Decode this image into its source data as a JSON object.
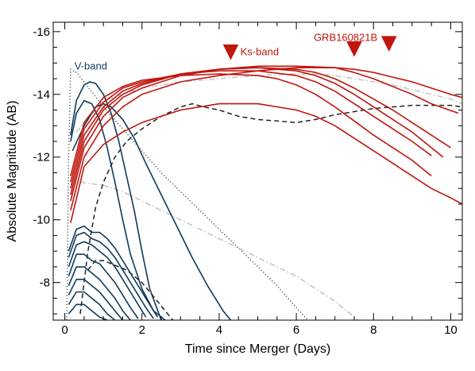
{
  "chart_data": {
    "type": "line",
    "xlabel": "Time since Merger (Days)",
    "ylabel": "Absolute Magnitude (AB)",
    "xlim": [
      -0.3,
      10.3
    ],
    "ylim": [
      -6.8,
      -16.3
    ],
    "y_inverted": true,
    "x_ticks": [
      0,
      2,
      4,
      6,
      8,
      10
    ],
    "y_ticks": [
      -8,
      -10,
      -12,
      -14,
      -16
    ],
    "grid": false,
    "colors": {
      "red": "#c0160e",
      "blue": "#0f3a5c",
      "black": "#222222",
      "gray": "#9a9a9a",
      "lightgray": "#c2c2c2"
    },
    "annotations": [
      {
        "text": "V-band",
        "x": 0.25,
        "y": -14.9,
        "color": "#0f3a5c"
      },
      {
        "text": "Ks-band",
        "x": 4.55,
        "y": -15.35,
        "color": "#c0160e"
      },
      {
        "text": "GRB160821B",
        "x": 6.45,
        "y": -15.8,
        "color": "#c0160e"
      }
    ],
    "markers": [
      {
        "label": "",
        "type": "down-triangle",
        "x": 4.3,
        "y": -15.35
      },
      {
        "label": "",
        "type": "down-triangle",
        "x": 7.5,
        "y": -15.45
      },
      {
        "label": "",
        "type": "down-triangle",
        "x": 8.4,
        "y": -15.62
      }
    ],
    "series": [
      {
        "group": "Ks",
        "style": "solid",
        "color": "#c0160e",
        "x": [
          0.15,
          0.5,
          1,
          1.5,
          2,
          3,
          4,
          5,
          6,
          7,
          7.5,
          8,
          8.5,
          9,
          9.5,
          10,
          10.3
        ],
        "y": [
          -10.3,
          -12.0,
          -13.0,
          -13.6,
          -14.0,
          -14.4,
          -14.6,
          -14.75,
          -14.85,
          -14.85,
          -14.8,
          -14.7,
          -14.55,
          -14.4,
          -14.2,
          -14.0,
          -13.9
        ]
      },
      {
        "group": "Ks",
        "style": "solid",
        "color": "#c0160e",
        "x": [
          0.15,
          0.5,
          1,
          1.5,
          2,
          3,
          4,
          5,
          6,
          7,
          7.5,
          8,
          8.5,
          9,
          9.5,
          10.2
        ],
        "y": [
          -10.6,
          -12.3,
          -13.3,
          -13.9,
          -14.2,
          -14.6,
          -14.8,
          -14.9,
          -14.9,
          -14.85,
          -14.7,
          -14.5,
          -14.25,
          -14.0,
          -13.7,
          -13.4
        ]
      },
      {
        "group": "Ks",
        "style": "solid",
        "color": "#c0160e",
        "x": [
          0.15,
          0.5,
          1,
          1.5,
          2,
          3,
          4,
          5,
          6,
          6.5,
          7,
          7.5,
          8,
          8.5,
          9,
          9.5,
          10
        ],
        "y": [
          -10.8,
          -12.5,
          -13.5,
          -14.0,
          -14.3,
          -14.65,
          -14.8,
          -14.85,
          -14.8,
          -14.7,
          -14.5,
          -14.2,
          -13.85,
          -13.5,
          -13.1,
          -12.7,
          -12.3
        ]
      },
      {
        "group": "Ks",
        "style": "solid",
        "color": "#c0160e",
        "x": [
          0.15,
          0.5,
          1,
          1.5,
          2,
          3,
          4,
          5,
          6,
          6.5,
          7,
          7.5,
          8,
          8.5,
          9,
          9.5,
          9.8
        ],
        "y": [
          -11.0,
          -12.7,
          -13.6,
          -14.1,
          -14.35,
          -14.65,
          -14.8,
          -14.85,
          -14.75,
          -14.6,
          -14.35,
          -14.0,
          -13.6,
          -13.2,
          -12.8,
          -12.3,
          -12.0
        ]
      },
      {
        "group": "Ks",
        "style": "solid",
        "color": "#c0160e",
        "x": [
          0.15,
          0.5,
          1,
          1.5,
          2,
          3,
          4,
          5,
          6,
          6.5,
          7,
          7.5,
          8,
          8.5,
          9,
          9.5
        ],
        "y": [
          -11.2,
          -12.9,
          -13.75,
          -14.2,
          -14.4,
          -14.65,
          -14.75,
          -14.75,
          -14.6,
          -14.4,
          -14.1,
          -13.7,
          -13.3,
          -12.9,
          -12.5,
          -12.05
        ]
      },
      {
        "group": "Ks",
        "style": "solid",
        "color": "#c0160e",
        "x": [
          0.15,
          0.5,
          1,
          1.5,
          2,
          3,
          4,
          5,
          5.5,
          6,
          6.5,
          7,
          7.5,
          8,
          8.5,
          9,
          9.5
        ],
        "y": [
          -11.4,
          -13.1,
          -13.9,
          -14.25,
          -14.45,
          -14.6,
          -14.65,
          -14.6,
          -14.5,
          -14.3,
          -14.0,
          -13.6,
          -13.15,
          -12.7,
          -12.3,
          -11.9,
          -11.4
        ]
      },
      {
        "group": "Ks",
        "style": "solid",
        "color": "#c0160e",
        "x": [
          0.15,
          0.5,
          1,
          1.5,
          2,
          3,
          4,
          5,
          6,
          6.5,
          7,
          7.5,
          8,
          8.5,
          9,
          9.5,
          10,
          10.3
        ],
        "y": [
          -9.9,
          -11.7,
          -12.4,
          -12.8,
          -13.1,
          -13.5,
          -13.7,
          -13.7,
          -13.5,
          -13.3,
          -13.0,
          -12.6,
          -12.2,
          -11.8,
          -11.4,
          -11.0,
          -10.7,
          -10.5
        ]
      },
      {
        "group": "V",
        "style": "solid",
        "color": "#0f3a5c",
        "x": [
          0.15,
          0.3,
          0.5,
          0.65,
          0.8,
          1,
          1.2,
          1.4,
          1.6,
          1.8,
          2,
          2.2,
          2.5
        ],
        "y": [
          -12.7,
          -13.8,
          -14.3,
          -14.4,
          -14.35,
          -14.0,
          -13.4,
          -12.5,
          -11.4,
          -10.3,
          -9.0,
          -7.8,
          -6.8
        ]
      },
      {
        "group": "V",
        "style": "solid",
        "color": "#0f3a5c",
        "x": [
          0.15,
          0.3,
          0.5,
          0.7,
          0.9,
          1.1,
          1.3,
          1.5,
          1.7,
          2.0,
          2.3,
          2.6
        ],
        "y": [
          -12.5,
          -13.4,
          -13.8,
          -13.7,
          -13.2,
          -12.3,
          -11.2,
          -10.0,
          -8.9,
          -7.8,
          -7.1,
          -6.8
        ]
      },
      {
        "group": "V",
        "style": "solid",
        "color": "#0f3a5c",
        "x": [
          0.2,
          0.5,
          0.8,
          1.0,
          1.2,
          1.5,
          1.8,
          2.1,
          2.5,
          2.9,
          3.3,
          3.7,
          4.1,
          4.3
        ],
        "y": [
          -12.2,
          -13.0,
          -13.6,
          -13.7,
          -13.6,
          -13.2,
          -12.6,
          -11.8,
          -10.8,
          -9.8,
          -8.8,
          -7.9,
          -7.1,
          -6.8
        ]
      },
      {
        "group": "V",
        "style": "solid",
        "color": "#0f3a5c",
        "x": [
          0.1,
          0.3,
          0.5,
          0.7,
          0.9,
          1.1,
          1.3,
          1.5,
          1.7,
          1.9,
          2.1,
          2.4
        ],
        "y": [
          -9.0,
          -9.7,
          -9.8,
          -9.6,
          -9.6,
          -9.4,
          -9.1,
          -8.7,
          -8.3,
          -7.9,
          -7.5,
          -6.9
        ]
      },
      {
        "group": "V",
        "style": "solid",
        "color": "#0f3a5c",
        "x": [
          0.1,
          0.3,
          0.5,
          0.7,
          0.9,
          1.1,
          1.3,
          1.5,
          1.7,
          1.9,
          2.1,
          2.3
        ],
        "y": [
          -8.8,
          -9.5,
          -9.6,
          -9.4,
          -9.3,
          -9.1,
          -8.8,
          -8.4,
          -8.0,
          -7.6,
          -7.2,
          -6.85
        ]
      },
      {
        "group": "V",
        "style": "solid",
        "color": "#0f3a5c",
        "x": [
          0.1,
          0.3,
          0.5,
          0.7,
          0.9,
          1.1,
          1.3,
          1.5,
          1.7,
          1.9,
          2.1
        ],
        "y": [
          -8.5,
          -9.2,
          -9.3,
          -9.2,
          -9.0,
          -8.8,
          -8.5,
          -8.1,
          -7.7,
          -7.3,
          -6.9
        ]
      },
      {
        "group": "V",
        "style": "solid",
        "color": "#0f3a5c",
        "x": [
          0.1,
          0.3,
          0.5,
          0.7,
          0.9,
          1.1,
          1.3,
          1.5,
          1.7,
          1.9
        ],
        "y": [
          -8.2,
          -8.9,
          -8.9,
          -8.7,
          -8.6,
          -8.3,
          -8.0,
          -7.6,
          -7.2,
          -6.85
        ]
      },
      {
        "group": "V",
        "style": "solid",
        "color": "#0f3a5c",
        "x": [
          0.1,
          0.3,
          0.5,
          0.7,
          0.9,
          1.1,
          1.3,
          1.5,
          1.7
        ],
        "y": [
          -7.9,
          -8.5,
          -8.5,
          -8.3,
          -8.1,
          -7.8,
          -7.5,
          -7.1,
          -6.8
        ]
      },
      {
        "group": "V",
        "style": "solid",
        "color": "#0f3a5c",
        "x": [
          0.1,
          0.3,
          0.5,
          0.7,
          0.9,
          1.1,
          1.3,
          1.5
        ],
        "y": [
          -7.6,
          -8.1,
          -8.1,
          -7.9,
          -7.7,
          -7.4,
          -7.1,
          -6.8
        ]
      },
      {
        "group": "V",
        "style": "solid",
        "color": "#0f3a5c",
        "x": [
          0.1,
          0.3,
          0.5,
          0.7,
          0.9,
          1.1,
          1.3
        ],
        "y": [
          -7.3,
          -7.7,
          -7.7,
          -7.5,
          -7.3,
          -7.0,
          -6.8
        ]
      },
      {
        "group": "V",
        "style": "solid",
        "color": "#0f3a5c",
        "x": [
          0.1,
          0.3,
          0.5,
          0.7,
          0.9,
          1.1
        ],
        "y": [
          -7.0,
          -7.3,
          -7.3,
          -7.1,
          -6.9,
          -6.8
        ]
      },
      {
        "group": "model",
        "style": "dashed",
        "color": "#222222",
        "x": [
          0.4,
          0.6,
          0.8,
          1.0,
          1.3,
          1.6,
          2.0,
          2.5,
          3.0,
          3.3,
          3.6,
          4.0,
          4.5,
          5.0,
          5.5,
          6.0,
          6.5,
          7.0,
          7.5,
          8.0,
          8.5,
          9.0,
          9.5,
          10.0,
          10.3
        ],
        "y": [
          -7.0,
          -9.0,
          -10.4,
          -11.2,
          -12.0,
          -12.5,
          -12.9,
          -13.3,
          -13.6,
          -13.7,
          -13.6,
          -13.5,
          -13.3,
          -13.2,
          -13.15,
          -13.1,
          -13.2,
          -13.35,
          -13.45,
          -13.55,
          -13.6,
          -13.65,
          -13.65,
          -13.65,
          -13.6
        ]
      },
      {
        "group": "model",
        "style": "dashed",
        "color": "#222222",
        "x": [
          0.6,
          0.8,
          1.0,
          1.2,
          1.4,
          1.6,
          1.8,
          2.0,
          2.2,
          2.4,
          2.6,
          2.8
        ],
        "y": [
          -8.4,
          -8.7,
          -8.7,
          -8.6,
          -8.5,
          -8.4,
          -8.2,
          -8.0,
          -7.7,
          -7.4,
          -7.1,
          -6.8
        ]
      },
      {
        "group": "model",
        "style": "dotted",
        "color": "#555555",
        "x": [
          0.05,
          0.1,
          0.15,
          0.3,
          0.5,
          1.0,
          1.5,
          2.0,
          2.5,
          3.0,
          3.5,
          4.0,
          4.5,
          5.0,
          5.5,
          6.0,
          6.3
        ],
        "y": [
          -6.8,
          -12.0,
          -14.8,
          -14.7,
          -14.4,
          -13.6,
          -12.9,
          -12.2,
          -11.5,
          -10.9,
          -10.3,
          -9.7,
          -9.1,
          -8.5,
          -7.9,
          -7.2,
          -6.8
        ]
      },
      {
        "group": "model",
        "style": "dashdot",
        "color": "#c2c2c2",
        "x": [
          0.3,
          1,
          2,
          3,
          4,
          5,
          5.8,
          6.5,
          7,
          7.5,
          8,
          8.5,
          9,
          9.5,
          10,
          10.3
        ],
        "y": [
          -12.8,
          -13.8,
          -14.2,
          -14.4,
          -14.5,
          -14.6,
          -14.65,
          -14.65,
          -14.6,
          -14.5,
          -14.4,
          -14.3,
          -14.15,
          -14.0,
          -13.85,
          -13.7
        ]
      },
      {
        "group": "model",
        "style": "dashdot",
        "color": "#c2c2c2",
        "x": [
          0.4,
          1,
          1.5,
          2,
          2.5,
          3,
          3.5,
          4,
          4.5,
          5,
          5.5,
          6,
          6.5,
          7,
          7.3,
          7.6
        ],
        "y": [
          -11.2,
          -11.1,
          -10.9,
          -10.6,
          -10.3,
          -10.0,
          -9.7,
          -9.4,
          -9.1,
          -8.8,
          -8.5,
          -8.2,
          -7.8,
          -7.4,
          -7.1,
          -6.8
        ]
      }
    ]
  }
}
